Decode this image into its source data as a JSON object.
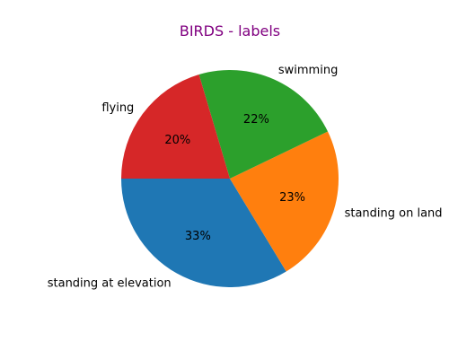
{
  "chart_data": {
    "type": "pie",
    "title": "BIRDS - labels",
    "title_color": "#800080",
    "start_angle_deg": 180,
    "direction": "counterclockwise",
    "slices": [
      {
        "label": "standing at elevation",
        "value": 33,
        "pct_label": "33%",
        "color": "#1f77b4"
      },
      {
        "label": "standing on land",
        "value": 23,
        "pct_label": "23%",
        "color": "#ff7f0e"
      },
      {
        "label": "swimming",
        "value": 22,
        "pct_label": "22%",
        "color": "#2ca02c"
      },
      {
        "label": "flying",
        "value": 20,
        "pct_label": "20%",
        "color": "#d62728"
      }
    ]
  }
}
